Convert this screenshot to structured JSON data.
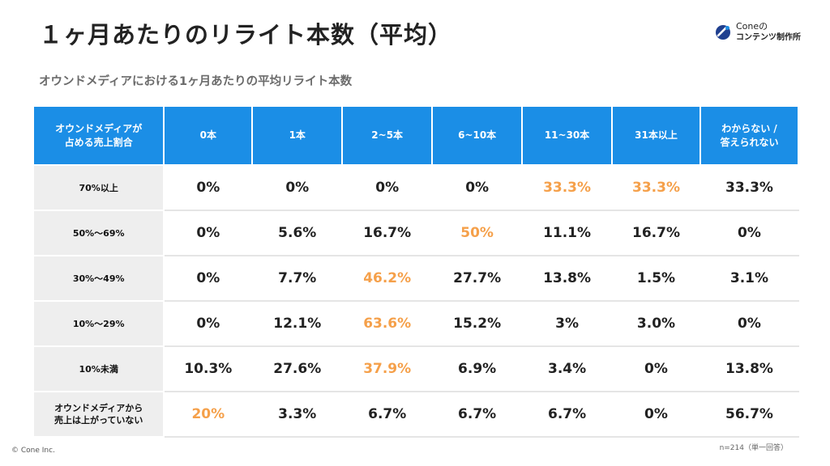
{
  "slide": {
    "title": "１ヶ月あたりのリライト本数（平均）",
    "subtitle": "オウンドメディアにおける1ヶ月あたりの平均リライト本数",
    "logo": {
      "brand": "Coneの",
      "tagline": "コンテンツ制作所",
      "icon": "cone-logo-icon"
    },
    "copyright": "© Cone Inc.",
    "note": "n=214（単一回答）"
  },
  "colors": {
    "header_bg": "#1b8ee6",
    "row_header_bg": "#eeeeee",
    "highlight": "#f5a04a",
    "title": "#222222",
    "subtitle": "#6b6b6b"
  },
  "table": {
    "header_corner": "オウンドメディアが\n占める売上割合",
    "columns": [
      "0本",
      "1本",
      "2~5本",
      "6~10本",
      "11~30本",
      "31本以上",
      "わからない /\n答えられない"
    ],
    "rows": [
      {
        "label": "70%以上",
        "values": [
          "0%",
          "0%",
          "0%",
          "0%",
          "33.3%",
          "33.3%",
          "33.3%"
        ],
        "highlight": [
          false,
          false,
          false,
          false,
          true,
          true,
          false
        ]
      },
      {
        "label": "50%〜69%",
        "values": [
          "0%",
          "5.6%",
          "16.7%",
          "50%",
          "11.1%",
          "16.7%",
          "0%"
        ],
        "highlight": [
          false,
          false,
          false,
          true,
          false,
          false,
          false
        ]
      },
      {
        "label": "30%〜49%",
        "values": [
          "0%",
          "7.7%",
          "46.2%",
          "27.7%",
          "13.8%",
          "1.5%",
          "3.1%"
        ],
        "highlight": [
          false,
          false,
          true,
          false,
          false,
          false,
          false
        ]
      },
      {
        "label": "10%〜29%",
        "values": [
          "0%",
          "12.1%",
          "63.6%",
          "15.2%",
          "3%",
          "3.0%",
          "0%"
        ],
        "highlight": [
          false,
          false,
          true,
          false,
          false,
          false,
          false
        ]
      },
      {
        "label": "10%未満",
        "values": [
          "10.3%",
          "27.6%",
          "37.9%",
          "6.9%",
          "3.4%",
          "0%",
          "13.8%"
        ],
        "highlight": [
          false,
          false,
          true,
          false,
          false,
          false,
          false
        ]
      },
      {
        "label": "オウンドメディアから\n売上は上がっていない",
        "values": [
          "20%",
          "3.3%",
          "6.7%",
          "6.7%",
          "6.7%",
          "0%",
          "56.7%"
        ],
        "highlight": [
          true,
          false,
          false,
          false,
          false,
          false,
          false
        ]
      }
    ]
  }
}
